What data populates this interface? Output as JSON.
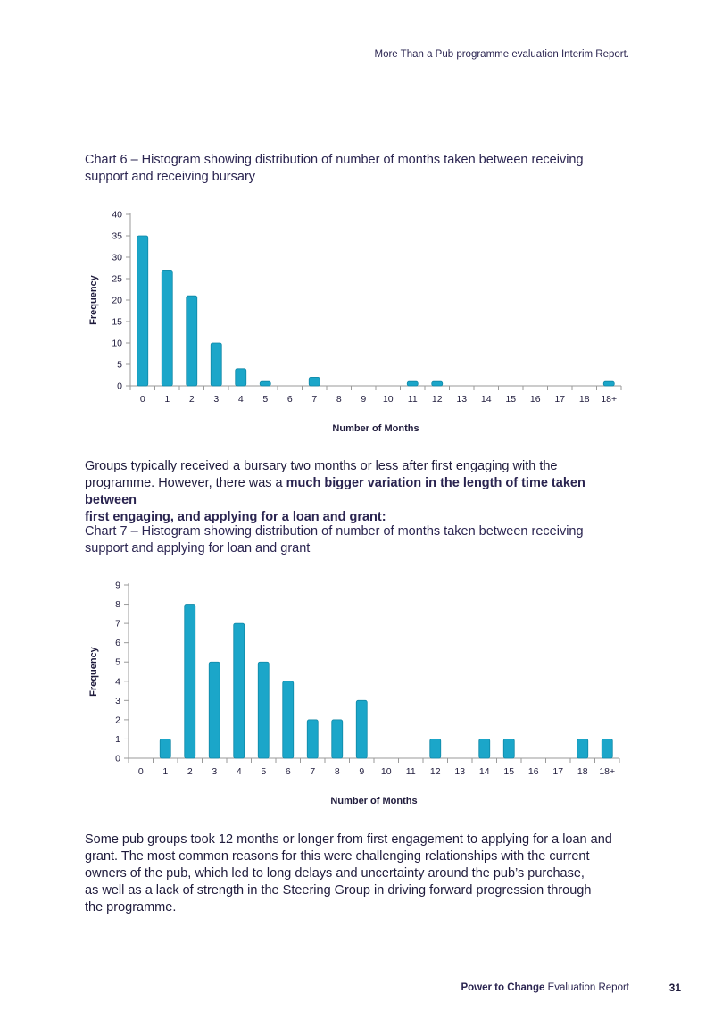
{
  "header": {
    "report_title": "More Than a Pub programme evaluation Interim Report."
  },
  "chart6": {
    "caption_line1": "Chart 6 – Histogram showing distribution of number of months taken between receiving",
    "caption_line2": "support and receiving bursary"
  },
  "paragraph1": {
    "line1": "Groups typically received a bursary two months or less after first engaging with the",
    "line2a": "programme. However, there was a ",
    "line2b": "much bigger variation in the length of time taken between",
    "line3": "first engaging, and applying for a loan and grant:"
  },
  "chart7": {
    "caption_line1": "Chart 7 – Histogram showing distribution of number of months taken between receiving",
    "caption_line2": "support and applying for loan and grant"
  },
  "paragraph2": {
    "lines": [
      "Some pub groups took 12 months or longer from first engagement to applying for a loan and",
      "grant. The most common reasons for this were challenging relationships with the current",
      "owners of the pub, which led to long delays and uncertainty around the pub’s purchase,",
      "as well as a lack of strength in the Steering Group in driving forward progression through",
      "the programme."
    ]
  },
  "footer": {
    "org": "Power to Change",
    "label": " Evaluation Report",
    "page": "31"
  },
  "chart_data": [
    {
      "type": "bar",
      "title": "",
      "categories": [
        "0",
        "1",
        "2",
        "3",
        "4",
        "5",
        "6",
        "7",
        "8",
        "9",
        "10",
        "11",
        "12",
        "13",
        "14",
        "15",
        "16",
        "17",
        "18",
        "18+"
      ],
      "values": [
        35,
        27,
        21,
        10,
        4,
        1,
        0,
        2,
        0,
        0,
        0,
        1,
        1,
        0,
        0,
        0,
        0,
        0,
        0,
        1
      ],
      "xlabel": "Number of Months",
      "ylabel": "Frequency",
      "ylim": [
        0,
        40
      ],
      "yticks": [
        0,
        5,
        10,
        15,
        20,
        25,
        30,
        35,
        40
      ],
      "grid": false,
      "bar_color": "#1ba6c9"
    },
    {
      "type": "bar",
      "title": "",
      "categories": [
        "0",
        "1",
        "2",
        "3",
        "4",
        "5",
        "6",
        "7",
        "8",
        "9",
        "10",
        "11",
        "12",
        "13",
        "14",
        "15",
        "16",
        "17",
        "18",
        "18+"
      ],
      "values": [
        0,
        1,
        8,
        5,
        7,
        5,
        4,
        2,
        2,
        3,
        0,
        0,
        1,
        0,
        1,
        1,
        0,
        0,
        1,
        1
      ],
      "xlabel": "Number of Months",
      "ylabel": "Frequency",
      "ylim": [
        0,
        9
      ],
      "yticks": [
        0,
        1,
        2,
        3,
        4,
        5,
        6,
        7,
        8,
        9
      ],
      "grid": false,
      "bar_color": "#1ba6c9"
    }
  ]
}
